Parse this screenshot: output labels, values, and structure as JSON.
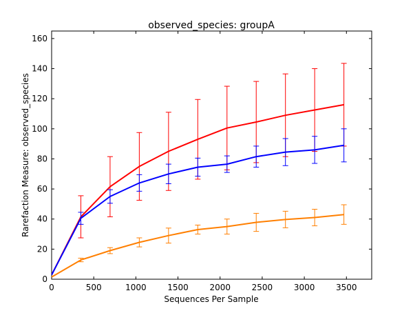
{
  "chart_data": {
    "type": "line",
    "title": "observed_species: groupA",
    "xlabel": "Sequences Per Sample",
    "ylabel": "Rarefaction Measure: observed_species",
    "xlim": [
      0,
      3800
    ],
    "ylim": [
      0,
      165
    ],
    "xticks": [
      0,
      500,
      1000,
      1500,
      2000,
      2500,
      3000,
      3500
    ],
    "yticks": [
      0,
      20,
      40,
      60,
      80,
      100,
      120,
      140,
      160
    ],
    "grid": false,
    "legend": "none",
    "x": [
      1,
      347,
      694,
      1041,
      1388,
      1735,
      2082,
      2429,
      2776,
      3123,
      3470
    ],
    "series": [
      {
        "color": "#ff0000",
        "values": [
          3.0,
          41.5,
          61.5,
          75.0,
          85.0,
          93.0,
          100.5,
          104.5,
          109.0,
          112.5,
          116.0
        ],
        "err": [
          0,
          14.0,
          20.0,
          22.5,
          26.0,
          26.5,
          27.8,
          27.0,
          27.5,
          27.5,
          27.5
        ]
      },
      {
        "color": "#0000ff",
        "values": [
          3.0,
          40.5,
          55.0,
          64.0,
          70.0,
          74.5,
          76.5,
          81.5,
          84.5,
          86.0,
          89.0
        ],
        "err": [
          0,
          4.0,
          4.5,
          5.5,
          6.5,
          6.0,
          5.5,
          7.0,
          9.0,
          9.0,
          11.0
        ]
      },
      {
        "color": "#ff7f00",
        "values": [
          1.5,
          12.8,
          19.0,
          24.5,
          29.0,
          33.0,
          35.0,
          37.8,
          39.7,
          41.0,
          43.0
        ],
        "err": [
          0,
          1.2,
          2.0,
          3.0,
          5.0,
          3.0,
          5.0,
          6.0,
          5.5,
          5.5,
          6.5
        ]
      }
    ]
  }
}
